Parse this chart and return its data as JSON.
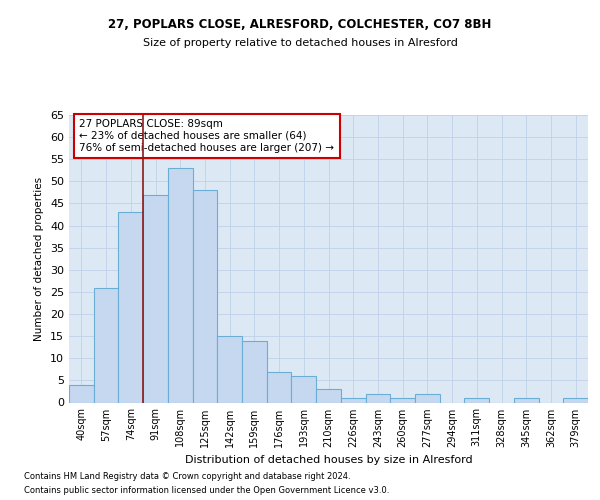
{
  "title1": "27, POPLARS CLOSE, ALRESFORD, COLCHESTER, CO7 8BH",
  "title2": "Size of property relative to detached houses in Alresford",
  "xlabel": "Distribution of detached houses by size in Alresford",
  "ylabel": "Number of detached properties",
  "footnote1": "Contains HM Land Registry data © Crown copyright and database right 2024.",
  "footnote2": "Contains public sector information licensed under the Open Government Licence v3.0.",
  "annotation_title": "27 POPLARS CLOSE: 89sqm",
  "annotation_line1": "← 23% of detached houses are smaller (64)",
  "annotation_line2": "76% of semi-detached houses are larger (207) →",
  "categories": [
    "40sqm",
    "57sqm",
    "74sqm",
    "91sqm",
    "108sqm",
    "125sqm",
    "142sqm",
    "159sqm",
    "176sqm",
    "193sqm",
    "210sqm",
    "226sqm",
    "243sqm",
    "260sqm",
    "277sqm",
    "294sqm",
    "311sqm",
    "328sqm",
    "345sqm",
    "362sqm",
    "379sqm"
  ],
  "values": [
    4,
    26,
    43,
    47,
    53,
    48,
    15,
    14,
    7,
    6,
    3,
    1,
    2,
    1,
    2,
    0,
    1,
    0,
    1,
    0,
    1
  ],
  "bar_color": "#c5d8f0",
  "bar_edge_color": "#6aaed6",
  "vline_color": "#8b1a1a",
  "ylim": [
    0,
    65
  ],
  "yticks": [
    0,
    5,
    10,
    15,
    20,
    25,
    30,
    35,
    40,
    45,
    50,
    55,
    60,
    65
  ],
  "grid_color": "#c0d0e8",
  "background_color": "#dce9f5",
  "fig_background": "#ffffff"
}
